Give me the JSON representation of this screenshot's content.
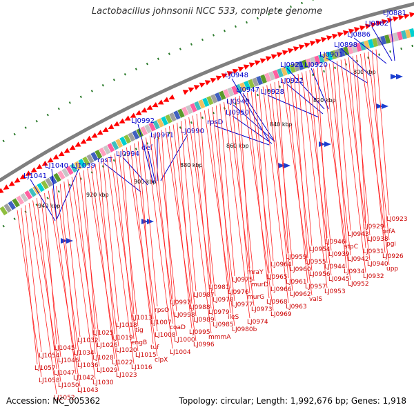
{
  "title": "Lactobacillus johnsonii NCC 533, complete genome",
  "accession_label": "Accession: NC_005362",
  "summary_label": "Topology: circular; Length: 1,992,676 bp; Genes: 1,918",
  "colors": {
    "backbone": "#7f7f7f",
    "gene_arrows": "#ff0000",
    "lower_labels": "#cc0000",
    "upper_labels": "#0000cc",
    "ticks": "#2a7a2a"
  },
  "scale_labels": [
    "800 kbp",
    "820 kbp",
    "840 kbp",
    "860 kbp",
    "880 kbp",
    "900 kbp",
    "920 kbp",
    "940 kbp"
  ],
  "upper_labels": [
    "LJ0881",
    "LJ0882",
    "LJ0886",
    "LJ0898",
    "LJ0901",
    "LJ0920",
    "LJ0921",
    "LJ0922",
    "LJ0928",
    "LJ0947",
    "LJ0948",
    "LJ0949",
    "LJ0950",
    "rpsD",
    "LJ0990",
    "LJ0991",
    "def",
    "LJ0992",
    "LJ0994",
    "rpsT",
    "LJ1039",
    "LJ1040",
    "LJ1041"
  ],
  "lower_labels": [
    "LJ0923",
    "prfA",
    "pgi",
    "LJ0926",
    "upp",
    "LJ0929",
    "LJ0938",
    "LJ0931",
    "LJ0940",
    "LJ0932",
    "LJ0943",
    "atpC",
    "LJ0942",
    "LJ0934",
    "LJ0952",
    "LJ0946",
    "LJ0939",
    "LJ0944",
    "LJ0945",
    "LJ0953",
    "LJ0954",
    "LJ0955",
    "LJ0956",
    "LJ0957",
    "valS",
    "LJ0959",
    "LJ0960",
    "LJ0961",
    "LJ0962",
    "LJ0963",
    "LJ0964",
    "LJ0965",
    "LJ0966",
    "LJ0968",
    "LJ0969",
    "mraY",
    "murD",
    "murG",
    "LJ0973",
    "LJ0974",
    "LJ0975",
    "LJ0976",
    "LJ0977",
    "ileS",
    "LJ0980b",
    "LJ0981",
    "LJ0978",
    "LJ0979",
    "LJ0985",
    "mmmA",
    "LJ0987",
    "LJ0988",
    "LJ0989",
    "LJ0995",
    "LJ0996",
    "LJ0997",
    "LJ0998",
    "coaD",
    "LJ1000",
    "LJ1004",
    "rpsO",
    "LJ1007",
    "LJ1008",
    "tuf",
    "clpX",
    "LJ1013",
    "tig",
    "engB",
    "LJ1015",
    "LJ1016",
    "LJ1018",
    "LJ1019",
    "LJ1020",
    "LJ1022",
    "LJ1023",
    "LJ1025",
    "LJ1026",
    "LJ1028",
    "LJ1029",
    "LJ1030",
    "LJ1032",
    "LJ1034",
    "LJ1036",
    "LJ1042",
    "LJ1043",
    "LJ1045",
    "LJ1046",
    "LJ1047",
    "LJ1050",
    "LJ1052",
    "LJ1054",
    "LJ1057",
    "LJ1058"
  ]
}
